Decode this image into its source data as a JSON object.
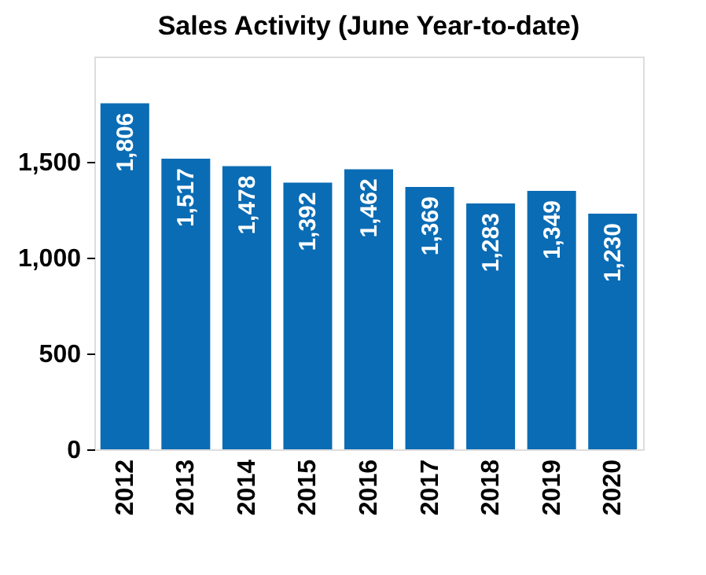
{
  "chart_data": {
    "type": "bar",
    "title": "Sales Activity (June Year-to-date)",
    "categories": [
      "2012",
      "2013",
      "2014",
      "2015",
      "2016",
      "2017",
      "2018",
      "2019",
      "2020"
    ],
    "values": [
      1806,
      1517,
      1478,
      1392,
      1462,
      1369,
      1283,
      1349,
      1230
    ],
    "color": "#0a6cb4",
    "ylim": [
      0,
      2050
    ],
    "yticks": [
      {
        "value": 0,
        "label": "0"
      },
      {
        "value": 500,
        "label": "500"
      },
      {
        "value": 1000,
        "label": "1,000"
      },
      {
        "value": 1500,
        "label": "1,500"
      }
    ],
    "value_labels": [
      "1,806",
      "1,517",
      "1,478",
      "1,392",
      "1,462",
      "1,369",
      "1,283",
      "1,349",
      "1,230"
    ],
    "grid": false
  }
}
